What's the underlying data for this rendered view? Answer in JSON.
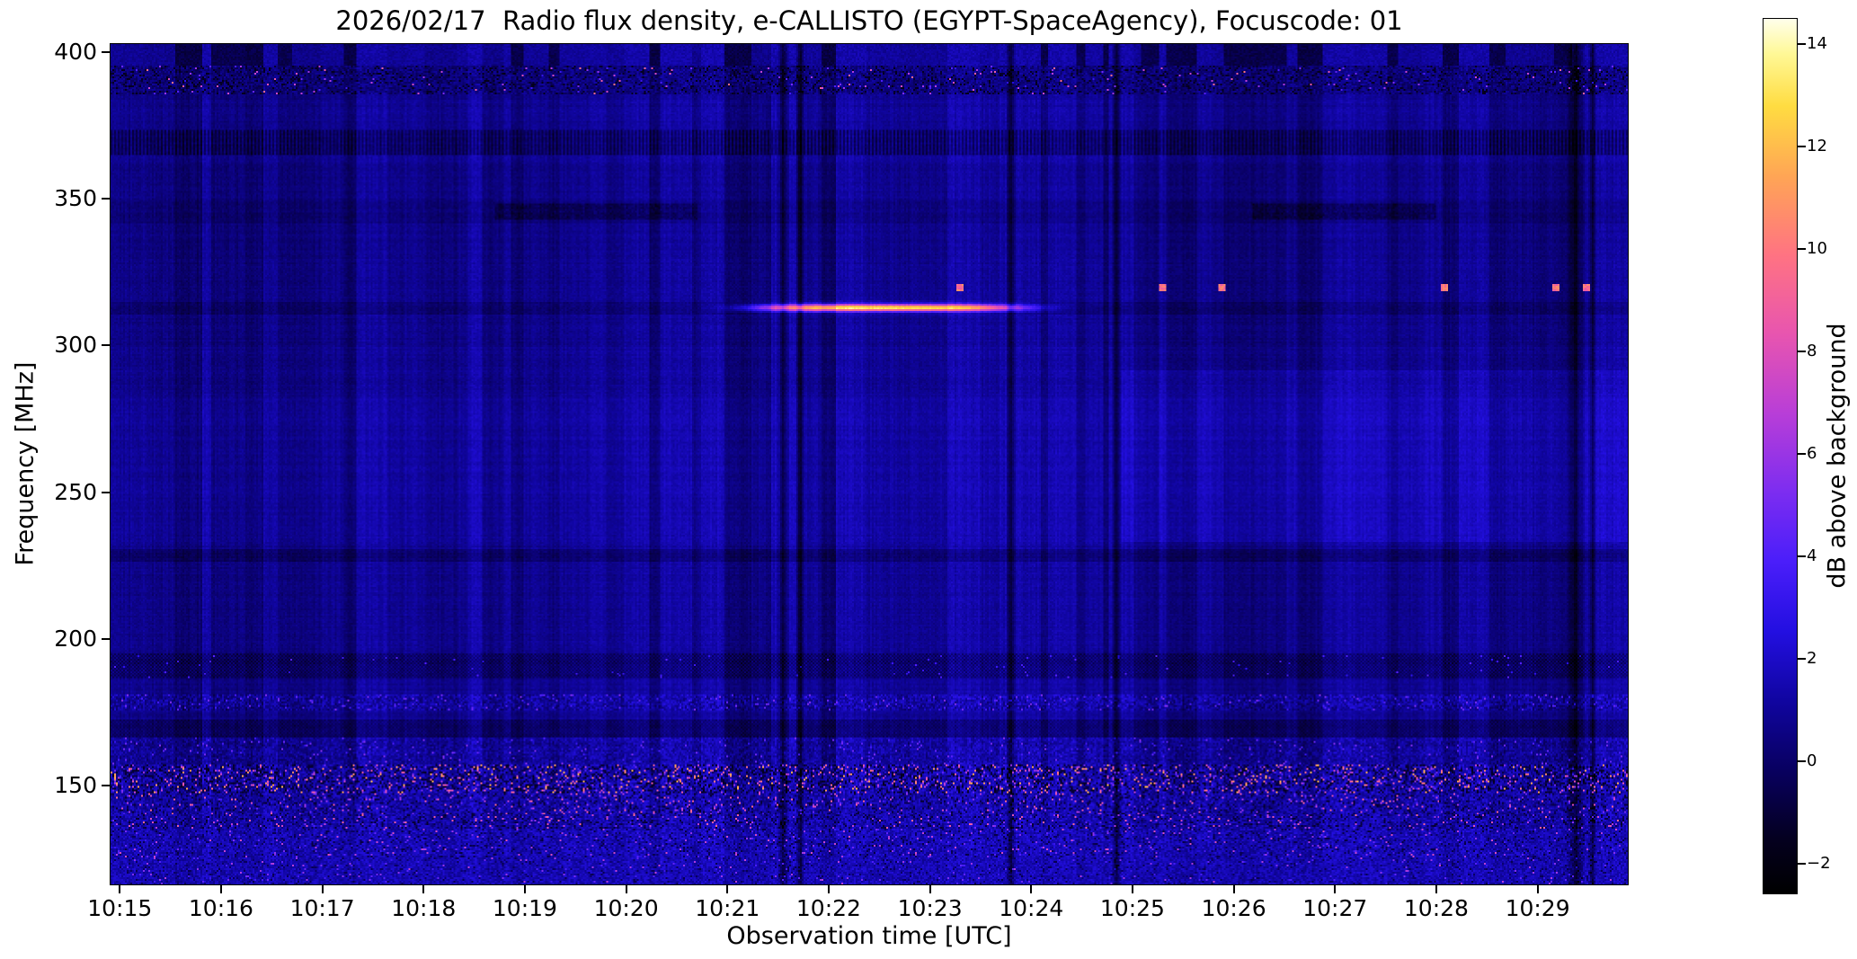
{
  "figure": {
    "title": "2026/02/17  Radio flux density, e-CALLISTO (EGYPT-SpaceAgency), Focuscode: 01",
    "xlabel": "Observation time [UTC]",
    "ylabel": "Frequency [MHz]",
    "colorbar_label": "dB above background"
  },
  "chart_data": {
    "type": "heatmap",
    "title": "2026/02/17  Radio flux density, e-CALLISTO (EGYPT-SpaceAgency), Focuscode: 01",
    "xlabel": "Observation time [UTC]",
    "ylabel": "Frequency [MHz]",
    "x_axis": {
      "unit": "minutes after 10:15 UTC",
      "min": -0.1,
      "max": 14.9,
      "tick_values": [
        0,
        1,
        2,
        3,
        4,
        5,
        6,
        7,
        8,
        9,
        10,
        11,
        12,
        13,
        14
      ],
      "tick_labels": [
        "10:15",
        "10:16",
        "10:17",
        "10:18",
        "10:19",
        "10:20",
        "10:21",
        "10:22",
        "10:23",
        "10:24",
        "10:25",
        "10:26",
        "10:27",
        "10:28",
        "10:29"
      ]
    },
    "y_axis": {
      "unit": "MHz",
      "min": 116,
      "max": 403,
      "tick_values": [
        400,
        350,
        300,
        250,
        200,
        150
      ],
      "tick_labels": [
        "400",
        "350",
        "300",
        "250",
        "200",
        "150"
      ]
    },
    "colorbar": {
      "label": "dB above background",
      "min": -2.6,
      "max": 14.5,
      "tick_values": [
        14,
        12,
        10,
        8,
        6,
        4,
        2,
        0,
        -2
      ],
      "tick_labels": [
        "14",
        "12",
        "10",
        "8",
        "6",
        "4",
        "2",
        "0",
        "−2"
      ],
      "colormap": "gnuplot2-like",
      "stops": [
        [
          0.0,
          [
            0,
            0,
            0
          ]
        ],
        [
          0.06,
          [
            4,
            0,
            30
          ]
        ],
        [
          0.14,
          [
            8,
            0,
            95
          ]
        ],
        [
          0.22,
          [
            16,
            5,
            160
          ]
        ],
        [
          0.3,
          [
            35,
            15,
            225
          ]
        ],
        [
          0.38,
          [
            75,
            30,
            250
          ]
        ],
        [
          0.46,
          [
            125,
            45,
            240
          ]
        ],
        [
          0.55,
          [
            185,
            62,
            215
          ]
        ],
        [
          0.64,
          [
            232,
            85,
            175
          ]
        ],
        [
          0.73,
          [
            255,
            115,
            130
          ]
        ],
        [
          0.82,
          [
            255,
            165,
            85
          ]
        ],
        [
          0.9,
          [
            255,
            220,
            65
          ]
        ],
        [
          0.96,
          [
            255,
            248,
            150
          ]
        ],
        [
          1.0,
          [
            255,
            255,
            235
          ]
        ]
      ]
    },
    "features": {
      "seed": 20260217,
      "background_db_range": [
        0,
        2.5
      ],
      "bright_line": {
        "freq_mhz": 313,
        "peak_minute": 7.6,
        "sigma_min": 1.1,
        "peak_db": 13,
        "note": "narrowband emission ~10:21-10:24"
      },
      "speckle_dots": {
        "freq_mhz": 320,
        "times_min": [
          8.3,
          10.3,
          10.9,
          13.1,
          14.2,
          14.5
        ],
        "db": 8.5
      },
      "vertical_dropouts": [
        {
          "t": 6.55,
          "w": 0.06
        },
        {
          "t": 6.72,
          "w": 0.04
        },
        {
          "t": 8.8,
          "w": 0.05
        },
        {
          "t": 9.85,
          "w": 0.05
        },
        {
          "t": 14.4,
          "w": 0.1
        },
        {
          "t": 14.56,
          "w": 0.04
        }
      ],
      "dark_smudges_min": [
        [
          3.7,
          5.7
        ],
        [
          11.2,
          13.0
        ]
      ],
      "dark_bands_mhz": [
        [
          386,
          397
        ],
        [
          365,
          374
        ],
        [
          342,
          350
        ],
        [
          226,
          230
        ],
        [
          186,
          194
        ],
        [
          166,
          172
        ]
      ],
      "noise_band_top_mhz": 157
    }
  }
}
